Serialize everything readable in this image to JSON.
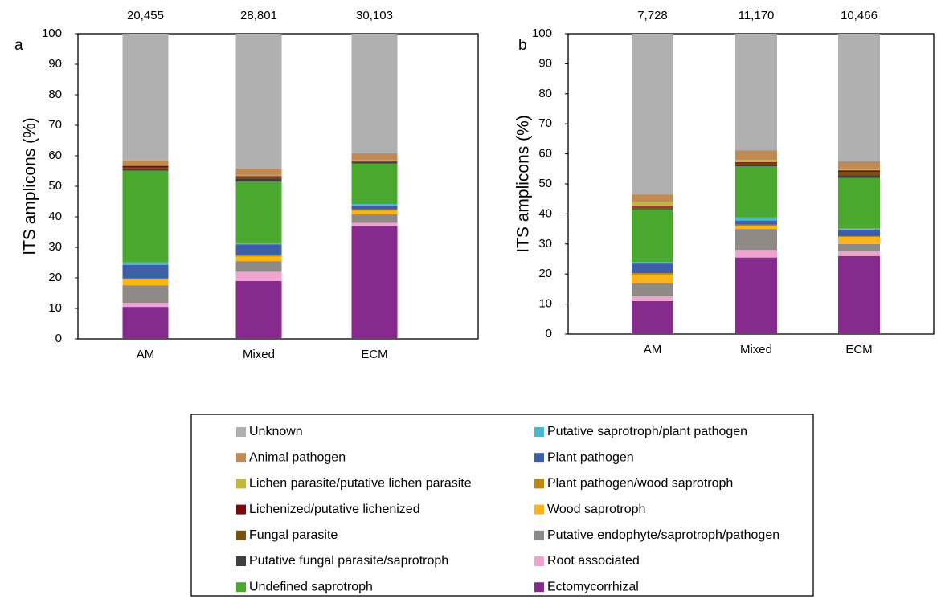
{
  "chart_data": [
    {
      "type": "stacked-bar",
      "panel_label": "a",
      "ylabel": "ITS amplicons (%)",
      "categories": [
        "AM",
        "Mixed",
        "ECM"
      ],
      "bar_totals": [
        {
          "value": 20455,
          "label": "20,455"
        },
        {
          "value": 28801,
          "label": "28,801"
        },
        {
          "value": 30103,
          "label": "30,103"
        }
      ],
      "ylim": [
        0,
        100
      ],
      "yticks": [
        0,
        10,
        20,
        30,
        40,
        50,
        60,
        70,
        80,
        90,
        100
      ],
      "series": [
        {
          "name": "Ectomycorrhizal",
          "color": "#862a8e",
          "values": [
            10.5,
            19,
            37
          ]
        },
        {
          "name": "Root associated",
          "color": "#f0a3d0",
          "values": [
            1.3,
            3,
            1
          ]
        },
        {
          "name": "Putative endophyte/saprotroph/pathogen",
          "color": "#8f8a85",
          "values": [
            5.7,
            3.5,
            2.8
          ]
        },
        {
          "name": "Wood saprotroph",
          "color": "#fbb41a",
          "values": [
            2,
            1.5,
            1.2
          ]
        },
        {
          "name": "Plant pathogen/wood saprotroph",
          "color": "#bf8a0a",
          "values": [
            0.3,
            0.5,
            0.5
          ]
        },
        {
          "name": "Plant pathogen",
          "color": "#3f5ea8",
          "values": [
            4.5,
            3.5,
            1.2
          ]
        },
        {
          "name": "Putative saprotroph/plant pathogen",
          "color": "#4bb8d0",
          "values": [
            0.8,
            0.3,
            0.5
          ]
        },
        {
          "name": "Undefined saprotroph",
          "color": "#4aa82e",
          "values": [
            30,
            20.2,
            13.3
          ]
        },
        {
          "name": "Putative fungal parasite/saprotroph",
          "color": "#404040",
          "values": [
            0.5,
            1,
            0.5
          ]
        },
        {
          "name": "Fungal parasite",
          "color": "#7a5010",
          "values": [
            0.5,
            0.5,
            0.3
          ]
        },
        {
          "name": "Lichenized/putative lichenized",
          "color": "#7a0a0a",
          "values": [
            0.6,
            0.3,
            0.1
          ]
        },
        {
          "name": "Lichen parasite/putative lichen parasite",
          "color": "#c0b93a",
          "values": [
            0.3,
            0.2,
            0.1
          ]
        },
        {
          "name": "Animal pathogen",
          "color": "#c08a55",
          "values": [
            1.5,
            2.3,
            2.3
          ]
        },
        {
          "name": "Unknown",
          "color": "#b0b0b0",
          "values": [
            41.5,
            44.2,
            39.2
          ]
        }
      ]
    },
    {
      "type": "stacked-bar",
      "panel_label": "b",
      "ylabel": "ITS amplicons (%)",
      "categories": [
        "AM",
        "Mixed",
        "ECM"
      ],
      "bar_totals": [
        {
          "value": 7728,
          "label": "7,728"
        },
        {
          "value": 11170,
          "label": "11,170"
        },
        {
          "value": 10466,
          "label": "10,466"
        }
      ],
      "ylim": [
        0,
        100
      ],
      "yticks": [
        0,
        10,
        20,
        30,
        40,
        50,
        60,
        70,
        80,
        90,
        100
      ],
      "series": [
        {
          "name": "Ectomycorrhizal",
          "color": "#862a8e",
          "values": [
            11,
            25.5,
            26
          ]
        },
        {
          "name": "Root associated",
          "color": "#f0a3d0",
          "values": [
            1.5,
            2.5,
            1.5
          ]
        },
        {
          "name": "Putative endophyte/saprotroph/pathogen",
          "color": "#8f8a85",
          "values": [
            4.5,
            7,
            2.5
          ]
        },
        {
          "name": "Wood saprotroph",
          "color": "#fbb41a",
          "values": [
            2.8,
            0.8,
            2.3
          ]
        },
        {
          "name": "Plant pathogen/wood saprotroph",
          "color": "#bf8a0a",
          "values": [
            0.5,
            0.7,
            0.3
          ]
        },
        {
          "name": "Plant pathogen",
          "color": "#3f5ea8",
          "values": [
            3.2,
            1.3,
            2.2
          ]
        },
        {
          "name": "Putative saprotroph/plant pathogen",
          "color": "#4bb8d0",
          "values": [
            0.5,
            1,
            0.3
          ]
        },
        {
          "name": "Undefined saprotroph",
          "color": "#4aa82e",
          "values": [
            17.5,
            17,
            16.9
          ]
        },
        {
          "name": "Putative fungal parasite/saprotroph",
          "color": "#404040",
          "values": [
            0.3,
            0.4,
            0.8
          ]
        },
        {
          "name": "Fungal parasite",
          "color": "#7a5010",
          "values": [
            0.7,
            0.6,
            1.2
          ]
        },
        {
          "name": "Lichenized/putative lichenized",
          "color": "#7a0a0a",
          "values": [
            0.3,
            0.4,
            0.5
          ]
        },
        {
          "name": "Lichen parasite/putative lichen parasite",
          "color": "#c0b93a",
          "values": [
            1.2,
            0.8,
            0.5
          ]
        },
        {
          "name": "Animal pathogen",
          "color": "#c08a55",
          "values": [
            2.5,
            3.2,
            2.5
          ]
        },
        {
          "name": "Unknown",
          "color": "#b0b0b0",
          "values": [
            53.5,
            38.8,
            42.5
          ]
        }
      ]
    }
  ]
}
